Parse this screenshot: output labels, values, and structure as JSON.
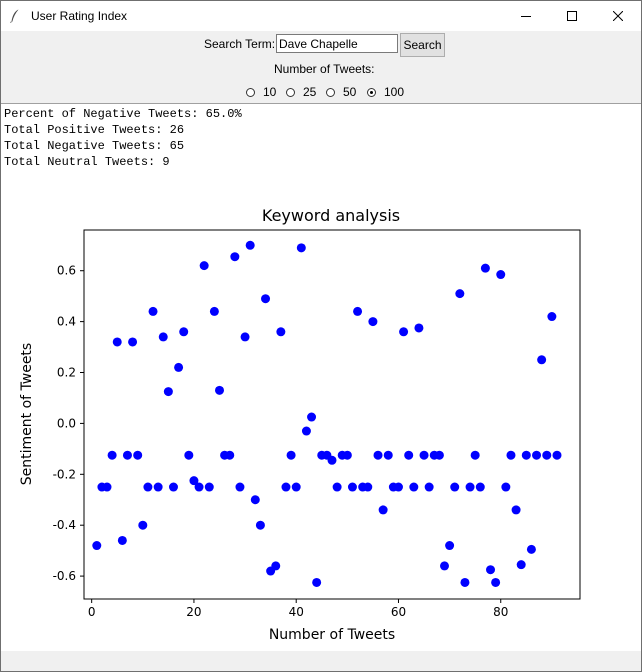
{
  "window": {
    "title": "User Rating Index"
  },
  "search": {
    "label": "Search Term:",
    "value": "Dave Chapelle",
    "button_label": "Search"
  },
  "tweets": {
    "label": "Number of Tweets:",
    "options": [
      "10",
      "25",
      "50",
      "100"
    ],
    "selected": "100"
  },
  "stats": {
    "line1": "Percent of Negative Tweets: 65.0%",
    "line2": "Total Positive Tweets: 26",
    "line3": "Total Negative Tweets: 65",
    "line4": "Total Neutral Tweets: 9"
  },
  "chart_data": {
    "type": "scatter",
    "title": "Keyword analysis",
    "xlabel": "Number of Tweets",
    "ylabel": "Sentiment of Tweets",
    "xlim": [
      -1.5,
      95.5
    ],
    "ylim": [
      -0.69,
      0.76
    ],
    "xticks": [
      "0",
      "20",
      "40",
      "60",
      "80"
    ],
    "yticks": [
      "-0.6",
      "-0.4",
      "-0.2",
      "0.0",
      "0.2",
      "0.4",
      "0.6"
    ],
    "grid": false,
    "marker_color": "#0000ff",
    "x": [
      1,
      2,
      3,
      4,
      5,
      6,
      7,
      8,
      9,
      10,
      11,
      12,
      13,
      14,
      15,
      16,
      17,
      18,
      19,
      20,
      21,
      22,
      23,
      24,
      25,
      26,
      27,
      28,
      29,
      30,
      31,
      32,
      33,
      34,
      35,
      36,
      37,
      38,
      39,
      40,
      41,
      42,
      43,
      44,
      45,
      46,
      47,
      48,
      49,
      50,
      51,
      52,
      53,
      54,
      55,
      56,
      57,
      58,
      59,
      60,
      61,
      62,
      63,
      64,
      65,
      66,
      67,
      68,
      69,
      70,
      71,
      72,
      73,
      74,
      75,
      76,
      77,
      78,
      79,
      80,
      81,
      82,
      83,
      84,
      85,
      86,
      87,
      88,
      89,
      90,
      91
    ],
    "y": [
      -0.48,
      -0.25,
      -0.25,
      -0.125,
      0.32,
      -0.46,
      -0.125,
      0.32,
      -0.125,
      -0.4,
      -0.25,
      0.44,
      -0.25,
      0.34,
      0.125,
      -0.25,
      0.22,
      0.36,
      -0.125,
      -0.225,
      -0.25,
      0.62,
      -0.25,
      0.44,
      0.13,
      -0.125,
      -0.125,
      0.655,
      -0.25,
      0.34,
      0.7,
      -0.3,
      -0.4,
      0.49,
      -0.58,
      -0.56,
      0.36,
      -0.25,
      -0.125,
      -0.25,
      0.69,
      -0.03,
      0.025,
      -0.625,
      -0.125,
      -0.125,
      -0.145,
      -0.25,
      -0.125,
      -0.125,
      -0.25,
      0.44,
      -0.25,
      -0.25,
      0.4,
      -0.125,
      -0.34,
      -0.125,
      -0.25,
      -0.25,
      0.36,
      -0.125,
      -0.25,
      0.375,
      -0.125,
      -0.25,
      -0.125,
      -0.125,
      -0.56,
      -0.48,
      -0.25,
      0.51,
      -0.625,
      -0.25,
      -0.125,
      -0.25,
      0.61,
      -0.575,
      -0.625,
      0.585,
      -0.25,
      -0.125,
      -0.34,
      -0.555,
      -0.125,
      -0.495,
      -0.125,
      0.25,
      -0.125,
      0.42,
      -0.125
    ]
  }
}
